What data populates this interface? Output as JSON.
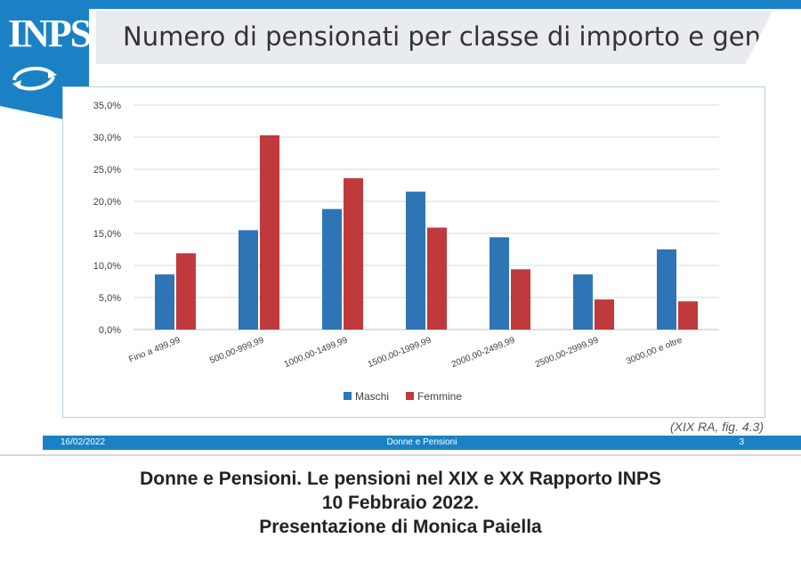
{
  "slide": {
    "title": "Numero di pensionati per classe di importo e genere",
    "logo_text": "INPS",
    "source_note": "(XIX RA, fig. 4.3)",
    "footer": {
      "date": "16/02/2022",
      "title": "Donne e Pensioni",
      "page": "3"
    }
  },
  "caption": {
    "line1": "Donne e Pensioni. Le pensioni nel XIX e XX Rapporto INPS",
    "line2": "10 Febbraio 2022.",
    "line3": "Presentazione di Monica Paiella"
  },
  "colors": {
    "brand_blue": "#1a82c4",
    "maschi": "#2e75b6",
    "femmine": "#c0393d"
  },
  "chart_data": {
    "type": "bar",
    "title": "",
    "xlabel": "",
    "ylabel": "",
    "categories": [
      "Fino a 499,99",
      "500,00-999,99",
      "1000,00-1499,99",
      "1500,00-1999,99",
      "2000,00-2499,99",
      "2500,00-2999,99",
      "3000,00 e oltre"
    ],
    "series": [
      {
        "name": "Maschi",
        "values": [
          8.6,
          15.5,
          18.8,
          21.5,
          14.4,
          8.6,
          12.5
        ]
      },
      {
        "name": "Femmine",
        "values": [
          11.9,
          30.3,
          23.6,
          15.9,
          9.4,
          4.7,
          4.4
        ]
      }
    ],
    "ylim": [
      0,
      35
    ],
    "yticks": [
      "0,0%",
      "5,0%",
      "10,0%",
      "15,0%",
      "20,0%",
      "25,0%",
      "30,0%",
      "35,0%"
    ],
    "grid": true,
    "legend_position": "bottom"
  }
}
